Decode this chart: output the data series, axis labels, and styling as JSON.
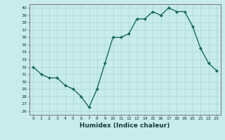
{
  "x": [
    0,
    1,
    2,
    3,
    4,
    5,
    6,
    7,
    8,
    9,
    10,
    11,
    12,
    13,
    14,
    15,
    16,
    17,
    18,
    19,
    20,
    21,
    22,
    23
  ],
  "y": [
    32,
    31,
    30.5,
    30.5,
    29.5,
    29,
    28,
    26.5,
    29,
    32.5,
    36,
    36,
    36.5,
    38.5,
    38.5,
    39.5,
    39,
    40,
    39.5,
    39.5,
    37.5,
    34.5,
    32.5,
    31.5
  ],
  "line_color": "#1a6b5e",
  "marker_color": "#1a6b5e",
  "bg_color": "#c8ebeb",
  "grid_color": "#a8d8d8",
  "xlabel": "Humidex (Indice chaleur)",
  "ylim": [
    25.5,
    40.5
  ],
  "xlim": [
    -0.5,
    23.5
  ],
  "yticks": [
    26,
    27,
    28,
    29,
    30,
    31,
    32,
    33,
    34,
    35,
    36,
    37,
    38,
    39,
    40
  ],
  "xticks": [
    0,
    1,
    2,
    3,
    4,
    5,
    6,
    7,
    8,
    9,
    10,
    11,
    12,
    13,
    14,
    15,
    16,
    17,
    18,
    19,
    20,
    21,
    22,
    23
  ],
  "tick_fontsize": 4.5,
  "xlabel_fontsize": 6.5
}
